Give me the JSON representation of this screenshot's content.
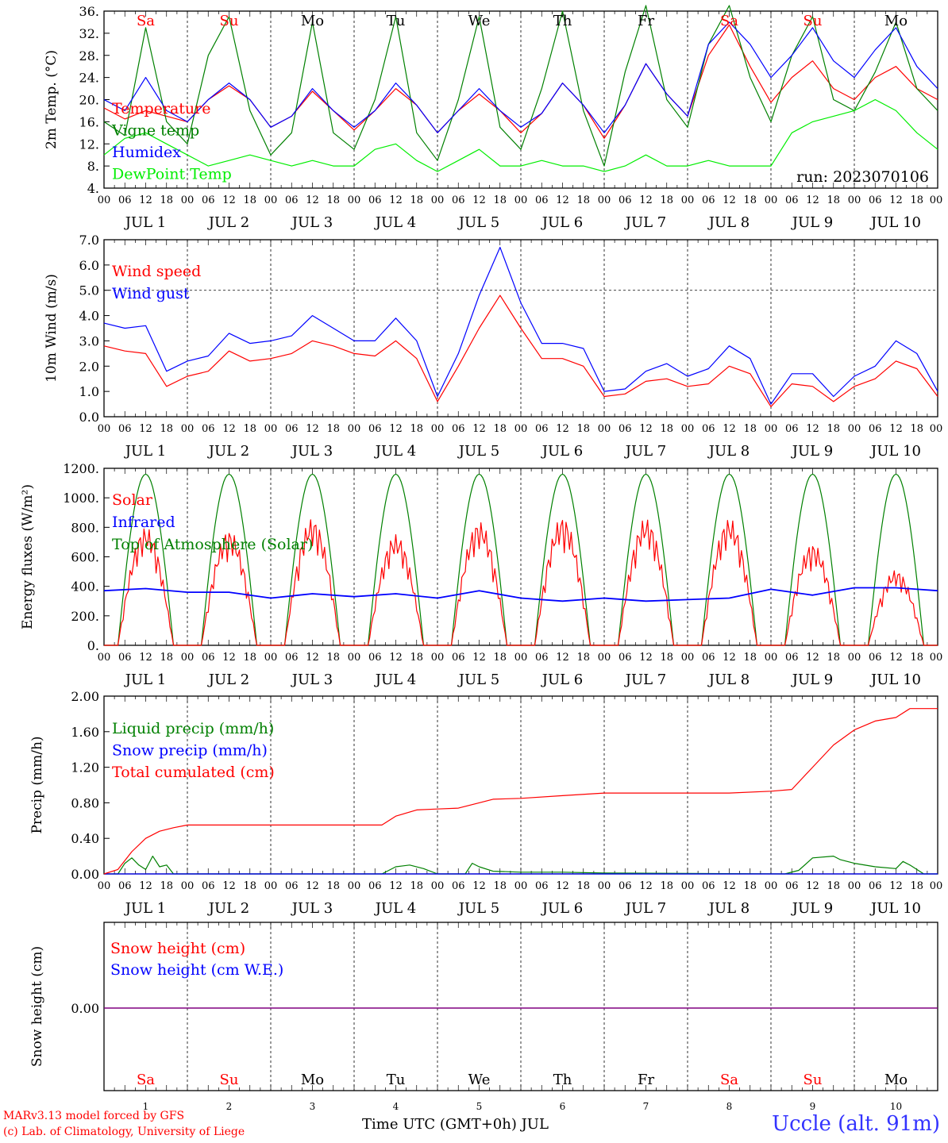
{
  "meta": {
    "run_label": "run: 2023070106",
    "xlabel": "Time UTC (GMT+0h) JUL",
    "footer_model": "MARv3.13 model forced by GFS",
    "footer_lab": "(c) Lab. of Climatology, University of Liege",
    "station": "Uccle (alt. 91m)",
    "days": [
      "Sa",
      "Su",
      "Mo",
      "Tu",
      "We",
      "Th",
      "Fr",
      "Sa",
      "Su",
      "Mo"
    ],
    "weekend_days": [
      0,
      1,
      7,
      8
    ],
    "date_labels": [
      "JUL  1",
      "JUL  2",
      "JUL  3",
      "JUL  4",
      "JUL  5",
      "JUL  6",
      "JUL  7",
      "JUL  8",
      "JUL  9",
      "JUL 10"
    ],
    "day_numbers": [
      "1",
      "2",
      "3",
      "4",
      "5",
      "6",
      "7",
      "8",
      "9",
      "10"
    ],
    "hour_ticks": [
      "00",
      "06",
      "12",
      "18"
    ],
    "colors": {
      "red": "#ff0000",
      "green": "#008000",
      "blue": "#0000ff",
      "lightgreen": "#00ee00",
      "purple": "#800080",
      "axis": "#000000"
    }
  },
  "chart_data": [
    {
      "type": "line",
      "ylabel": "2m Temp. (°C)",
      "ylim": [
        4,
        36
      ],
      "yticks": [
        "4.",
        "8.",
        "12.",
        "16.",
        "20.",
        "24.",
        "28.",
        "32.",
        "36."
      ],
      "x_unit": "hours since JUL 1 00 UTC",
      "x": [
        0,
        6,
        12,
        18,
        24,
        30,
        36,
        42,
        48,
        54,
        60,
        66,
        72,
        78,
        84,
        90,
        96,
        102,
        108,
        114,
        120,
        126,
        132,
        138,
        144,
        150,
        156,
        162,
        168,
        174,
        180,
        186,
        192,
        198,
        204,
        210,
        216,
        222,
        228,
        234,
        240
      ],
      "series": [
        {
          "name": "Temperature",
          "color": "#ff0000",
          "values": [
            18.5,
            16.5,
            18,
            17,
            16,
            20,
            22.5,
            20,
            15,
            17,
            21.5,
            18,
            14.5,
            18,
            22,
            19,
            14,
            18,
            21,
            18,
            14,
            17.5,
            23,
            19,
            13,
            19,
            26.5,
            21,
            17,
            28,
            33.5,
            26,
            19.5,
            24,
            27,
            22,
            20,
            24,
            26,
            22,
            20
          ]
        },
        {
          "name": "Vigne temp",
          "color": "#008000",
          "values": [
            16,
            13.5,
            33,
            16,
            12,
            28,
            35,
            18,
            10,
            14,
            34,
            14,
            11,
            20,
            35,
            14,
            9,
            20,
            35,
            15,
            11,
            22,
            36,
            18,
            8,
            25,
            37,
            20,
            15,
            30,
            37,
            24,
            16,
            28,
            35,
            20,
            18,
            25,
            34,
            22,
            18
          ]
        },
        {
          "name": "Humidex",
          "color": "#0000ff",
          "values": [
            20,
            18,
            24,
            18,
            16,
            20,
            23,
            20,
            15,
            17,
            22,
            18,
            15,
            18,
            23,
            19,
            14,
            18,
            22,
            18,
            15,
            17.5,
            23,
            19,
            14,
            19,
            26.5,
            21,
            17,
            30,
            34,
            30,
            24,
            28,
            33,
            27,
            24,
            29,
            33,
            26,
            22
          ]
        },
        {
          "name": "DewPoint Temp",
          "color": "#00ee00",
          "values": [
            10,
            13,
            14,
            12,
            10,
            8,
            9,
            10,
            9,
            8,
            9,
            8,
            8,
            11,
            12,
            9,
            7,
            9,
            11,
            8,
            8,
            9,
            8,
            8,
            7,
            8,
            10,
            8,
            8,
            9,
            8,
            8,
            8,
            14,
            16,
            17,
            18,
            20,
            18,
            14,
            11
          ]
        }
      ]
    },
    {
      "type": "line",
      "ylabel": "10m Wind (m/s)",
      "ylim": [
        0,
        7
      ],
      "yticks": [
        "0.0",
        "1.0",
        "2.0",
        "3.0",
        "4.0",
        "5.0",
        "6.0",
        "7.0"
      ],
      "x_unit": "hours since JUL 1 00 UTC",
      "x": [
        0,
        6,
        12,
        18,
        24,
        30,
        36,
        42,
        48,
        54,
        60,
        66,
        72,
        78,
        84,
        90,
        96,
        102,
        108,
        114,
        120,
        126,
        132,
        138,
        144,
        150,
        156,
        162,
        168,
        174,
        180,
        186,
        192,
        198,
        204,
        210,
        216,
        222,
        228,
        234,
        240
      ],
      "series": [
        {
          "name": "Wind speed",
          "color": "#ff0000",
          "values": [
            2.8,
            2.6,
            2.5,
            1.2,
            1.6,
            1.8,
            2.6,
            2.2,
            2.3,
            2.5,
            3.0,
            2.8,
            2.5,
            2.4,
            3.0,
            2.3,
            0.6,
            2.0,
            3.5,
            4.8,
            3.5,
            2.3,
            2.3,
            2.0,
            0.8,
            0.9,
            1.4,
            1.5,
            1.2,
            1.3,
            2.0,
            1.7,
            0.4,
            1.3,
            1.2,
            0.6,
            1.2,
            1.5,
            2.2,
            1.9,
            0.8
          ]
        },
        {
          "name": "Wind gust",
          "color": "#0000ff",
          "values": [
            3.7,
            3.5,
            3.6,
            1.8,
            2.2,
            2.4,
            3.3,
            2.9,
            3.0,
            3.2,
            4.0,
            3.5,
            3.0,
            3.0,
            3.9,
            3.0,
            0.8,
            2.5,
            4.8,
            6.7,
            4.5,
            2.9,
            2.9,
            2.7,
            1.0,
            1.1,
            1.8,
            2.1,
            1.6,
            1.9,
            2.8,
            2.3,
            0.5,
            1.7,
            1.7,
            0.8,
            1.6,
            2.0,
            3.0,
            2.5,
            1.0
          ]
        }
      ]
    },
    {
      "type": "line",
      "ylabel": "Energy fluxes (W/m²)",
      "ylim": [
        0,
        1200
      ],
      "yticks": [
        "0.",
        "200.",
        "400.",
        "600.",
        "800.",
        "1000.",
        "1200."
      ],
      "x_unit": "hours since JUL 1 00 UTC",
      "series": [
        {
          "name": "Solar",
          "color": "#ff0000",
          "daily_peaks": [
            800,
            780,
            860,
            750,
            840,
            870,
            860,
            860,
            690,
            510
          ]
        },
        {
          "name": "Infrared",
          "color": "#0000ff",
          "x": [
            0,
            12,
            24,
            30,
            36,
            48,
            60,
            72,
            84,
            96,
            108,
            120,
            132,
            144,
            156,
            168,
            180,
            192,
            204,
            216,
            228,
            240
          ],
          "values": [
            370,
            385,
            360,
            360,
            360,
            320,
            350,
            330,
            350,
            320,
            370,
            320,
            300,
            320,
            300,
            310,
            320,
            380,
            340,
            390,
            390,
            370
          ]
        },
        {
          "name": "Top of Atmosphere (Solar)",
          "color": "#008000",
          "daily_peak": 1160,
          "sunrise_hour": 4,
          "sunset_hour": 20
        }
      ]
    },
    {
      "type": "line",
      "ylabel": "Precip (mm/h)",
      "ylim": [
        0,
        2
      ],
      "yticks": [
        "0.00",
        "0.40",
        "0.80",
        "1.20",
        "1.60",
        "2.00"
      ],
      "x_unit": "hours since JUL 1 00 UTC",
      "series": [
        {
          "name": "Liquid precip (mm/h)",
          "color": "#008000",
          "x": [
            0,
            4,
            6,
            8,
            10,
            12,
            14,
            16,
            18,
            20,
            24,
            80,
            84,
            88,
            92,
            96,
            104,
            106,
            108,
            112,
            120,
            132,
            144,
            196,
            200,
            204,
            210,
            212,
            216,
            222,
            228,
            230,
            232,
            236,
            240
          ],
          "values": [
            0,
            0,
            0.12,
            0.18,
            0.1,
            0.05,
            0.2,
            0.08,
            0.1,
            0,
            0,
            0,
            0.08,
            0.1,
            0.06,
            0,
            0,
            0.12,
            0.08,
            0.03,
            0.02,
            0.02,
            0.01,
            0,
            0.04,
            0.18,
            0.2,
            0.16,
            0.12,
            0.08,
            0.06,
            0.14,
            0.1,
            0,
            0
          ]
        },
        {
          "name": "Snow precip (mm/h)",
          "color": "#0000ff",
          "x": [
            0,
            240
          ],
          "values": [
            0,
            0
          ]
        },
        {
          "name": "Total cumulated (cm)",
          "color": "#ff0000",
          "x": [
            0,
            4,
            8,
            12,
            16,
            20,
            24,
            48,
            72,
            80,
            84,
            90,
            96,
            102,
            108,
            112,
            120,
            132,
            144,
            156,
            168,
            180,
            192,
            198,
            204,
            210,
            216,
            222,
            228,
            232,
            240
          ],
          "values": [
            0,
            0.05,
            0.25,
            0.4,
            0.48,
            0.52,
            0.55,
            0.55,
            0.55,
            0.55,
            0.65,
            0.72,
            0.73,
            0.74,
            0.8,
            0.84,
            0.85,
            0.88,
            0.91,
            0.91,
            0.91,
            0.91,
            0.93,
            0.95,
            1.2,
            1.45,
            1.62,
            1.72,
            1.76,
            1.86,
            1.86
          ]
        }
      ]
    },
    {
      "type": "line",
      "ylabel": "Snow height (cm)",
      "yticks": [
        "0.00"
      ],
      "series": [
        {
          "name": "Snow height (cm)",
          "color": "#ff0000",
          "x": [
            0,
            240
          ],
          "values": [
            0,
            0
          ]
        },
        {
          "name": "Snow height (cm W.E.)",
          "color": "#0000ff",
          "x": [
            0,
            240
          ],
          "values": [
            0,
            0
          ]
        }
      ]
    }
  ]
}
